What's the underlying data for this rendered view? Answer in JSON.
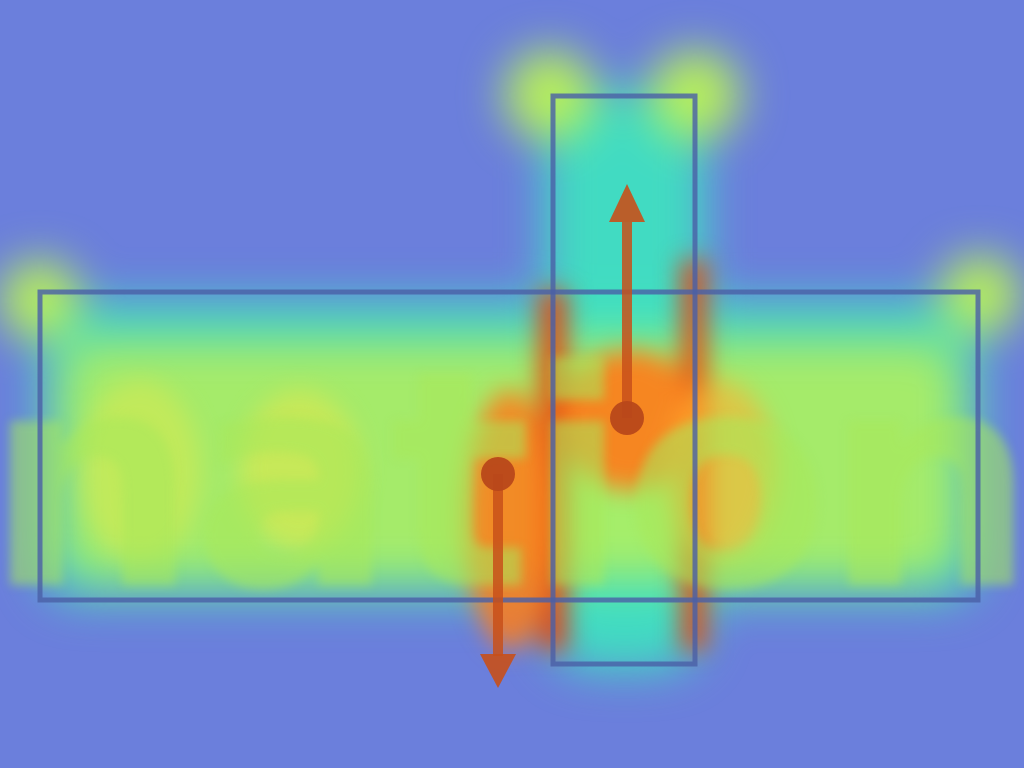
{
  "figure": {
    "word": "nation",
    "background_color": "#6b7fdc",
    "heat_colors": {
      "low": "#3fe0c0",
      "mid": "#b7f05a",
      "high": "#ff7a1a",
      "peak": "#e8400a"
    },
    "box_color": "#4a5fa6",
    "arrow_color": "#c8501a",
    "arrows": [
      {
        "name": "arrow-up",
        "direction": "up"
      },
      {
        "name": "arrow-down",
        "direction": "down"
      }
    ]
  }
}
